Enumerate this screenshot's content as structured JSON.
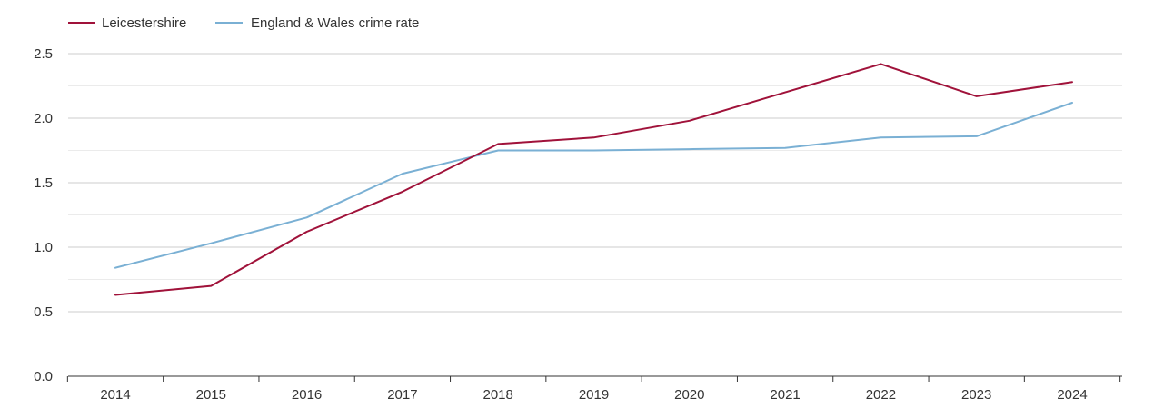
{
  "chart_data": {
    "type": "line",
    "title": "",
    "xlabel": "",
    "ylabel": "",
    "categories": [
      "2014",
      "2015",
      "2016",
      "2017",
      "2018",
      "2019",
      "2020",
      "2021",
      "2022",
      "2023",
      "2024"
    ],
    "ylim": [
      0,
      2.5
    ],
    "y_ticks": [
      "0.0",
      "0.5",
      "1.0",
      "1.5",
      "2.0",
      "2.5"
    ],
    "grid": true,
    "legend_position": "top-left",
    "series": [
      {
        "name": "Leicestershire",
        "color": "#a0123a",
        "values": [
          0.63,
          0.7,
          1.12,
          1.43,
          1.8,
          1.85,
          1.98,
          2.2,
          2.42,
          2.17,
          2.28
        ]
      },
      {
        "name": "England & Wales crime rate",
        "color": "#7ab0d4",
        "values": [
          0.84,
          1.03,
          1.23,
          1.57,
          1.75,
          1.75,
          1.76,
          1.77,
          1.85,
          1.86,
          2.12
        ]
      }
    ]
  }
}
